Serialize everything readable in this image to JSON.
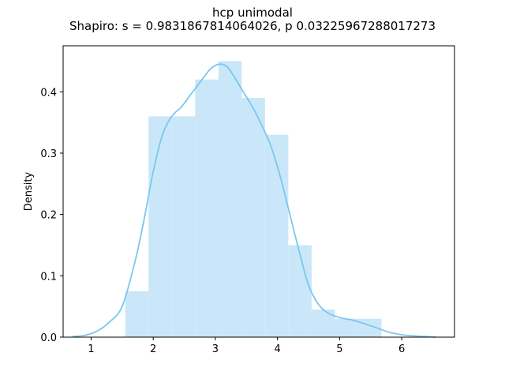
{
  "chart_data": {
    "type": "bar",
    "title": "hcp unimodal",
    "subtitle": "Shapiro: s = 0.9831867814064026, p 0.03225967288017273",
    "xlabel": "",
    "ylabel": "Density",
    "xlim": [
      0.55,
      6.85
    ],
    "ylim": [
      0.0,
      0.475
    ],
    "xticks": [
      1,
      2,
      3,
      4,
      5,
      6
    ],
    "yticks": [
      0.0,
      0.1,
      0.2,
      0.3,
      0.4
    ],
    "ytick_labels": [
      "0.0",
      "0.1",
      "0.2",
      "0.3",
      "0.4"
    ],
    "grid": false,
    "legend": "none",
    "histogram": {
      "bin_edges": [
        1.55,
        1.925,
        2.3,
        2.675,
        3.05,
        3.425,
        3.8,
        4.175,
        4.55,
        4.925,
        5.3,
        5.675
      ],
      "density": [
        0.075,
        0.36,
        0.36,
        0.42,
        0.45,
        0.39,
        0.33,
        0.15,
        0.045,
        0.03,
        0.03
      ]
    },
    "kde": {
      "x": [
        0.7,
        0.9,
        1.1,
        1.3,
        1.5,
        1.7,
        1.85,
        2.0,
        2.15,
        2.3,
        2.45,
        2.6,
        2.75,
        2.9,
        3.0,
        3.1,
        3.2,
        3.3,
        3.45,
        3.6,
        3.75,
        3.9,
        4.05,
        4.2,
        4.35,
        4.5,
        4.65,
        4.8,
        5.0,
        5.2,
        5.4,
        5.6,
        5.8,
        6.0,
        6.2,
        6.4,
        6.55
      ],
      "y": [
        0.001,
        0.003,
        0.01,
        0.025,
        0.05,
        0.12,
        0.19,
        0.27,
        0.33,
        0.36,
        0.375,
        0.395,
        0.415,
        0.435,
        0.443,
        0.445,
        0.44,
        0.425,
        0.4,
        0.375,
        0.345,
        0.31,
        0.26,
        0.2,
        0.14,
        0.085,
        0.055,
        0.04,
        0.032,
        0.028,
        0.022,
        0.015,
        0.008,
        0.004,
        0.002,
        0.001,
        0.0
      ]
    },
    "colors": {
      "bar_fill": "#c9e7f9",
      "kde_line": "#7cc7ee",
      "axis": "#000000"
    }
  }
}
